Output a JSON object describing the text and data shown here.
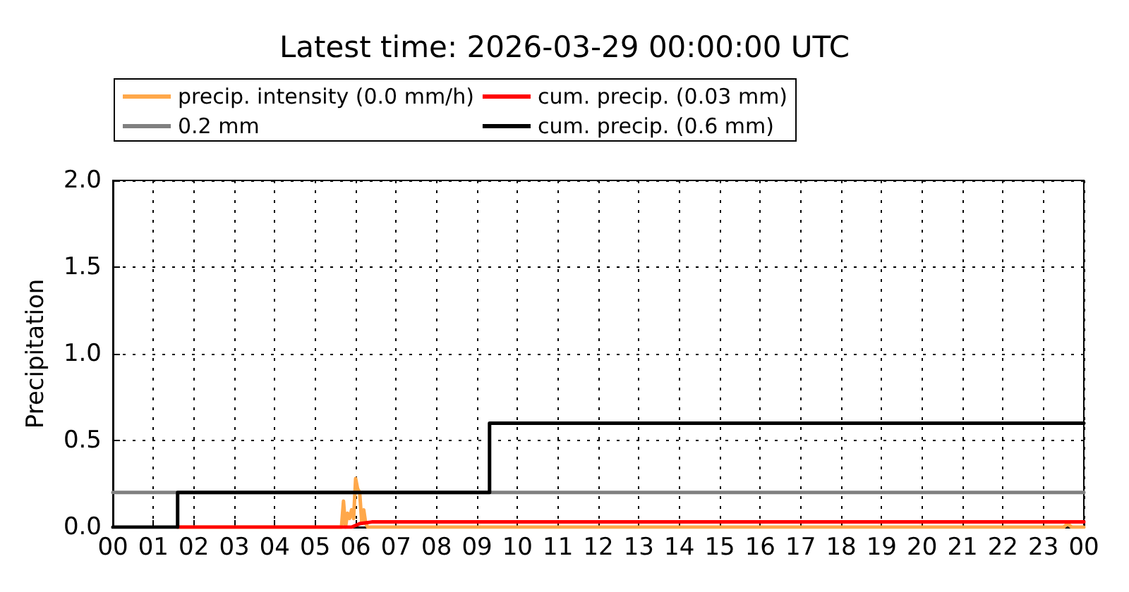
{
  "chart_data": {
    "type": "line",
    "title": "Latest time: 2026-03-29 00:00:00 UTC",
    "ylabel": "Precipitation",
    "xlim": [
      0,
      24
    ],
    "xticks": [
      {
        "value": 0,
        "label": "00"
      },
      {
        "value": 1,
        "label": "01"
      },
      {
        "value": 2,
        "label": "02"
      },
      {
        "value": 3,
        "label": "03"
      },
      {
        "value": 4,
        "label": "04"
      },
      {
        "value": 5,
        "label": "05"
      },
      {
        "value": 6,
        "label": "06"
      },
      {
        "value": 7,
        "label": "07"
      },
      {
        "value": 8,
        "label": "08"
      },
      {
        "value": 9,
        "label": "09"
      },
      {
        "value": 10,
        "label": "10"
      },
      {
        "value": 11,
        "label": "11"
      },
      {
        "value": 12,
        "label": "12"
      },
      {
        "value": 13,
        "label": "13"
      },
      {
        "value": 14,
        "label": "14"
      },
      {
        "value": 15,
        "label": "15"
      },
      {
        "value": 16,
        "label": "16"
      },
      {
        "value": 17,
        "label": "17"
      },
      {
        "value": 18,
        "label": "18"
      },
      {
        "value": 19,
        "label": "19"
      },
      {
        "value": 20,
        "label": "20"
      },
      {
        "value": 21,
        "label": "21"
      },
      {
        "value": 22,
        "label": "22"
      },
      {
        "value": 23,
        "label": "23"
      },
      {
        "value": 24,
        "label": "00"
      }
    ],
    "ylim": [
      0,
      2
    ],
    "yticks": [
      {
        "value": 0,
        "label": "0.0"
      },
      {
        "value": 0.5,
        "label": "0.5"
      },
      {
        "value": 1,
        "label": "1.0"
      },
      {
        "value": 1.5,
        "label": "1.5"
      },
      {
        "value": 2,
        "label": "2.0"
      }
    ],
    "grid": true,
    "legend": "top",
    "marker": "none",
    "line_style": "solid",
    "series": [
      {
        "name": "precip. intensity (0.0 mm/h)",
        "color": "#ffa84a",
        "x": [
          1.6,
          5.65,
          5.7,
          5.75,
          5.8,
          5.85,
          5.9,
          5.95,
          6.0,
          6.05,
          6.1,
          6.15,
          6.2,
          6.25,
          6.3,
          6.4,
          23.5,
          23.6,
          23.7,
          24
        ],
        "values": [
          0,
          0,
          0.15,
          0,
          0.08,
          0.05,
          0.1,
          0.05,
          0.28,
          0.22,
          0.2,
          0.03,
          0.1,
          0.02,
          0,
          0,
          0,
          0.02,
          0,
          0
        ]
      },
      {
        "name": "0.2 mm",
        "color": "#808080",
        "x": [
          0,
          24
        ],
        "values": [
          0.2,
          0.2
        ]
      },
      {
        "name": "cum. precip. (0.03 mm)",
        "color": "#ff0000",
        "x": [
          1.6,
          5.9,
          6.1,
          6.4,
          24
        ],
        "values": [
          0,
          0,
          0.02,
          0.03,
          0.03
        ]
      },
      {
        "name": "cum. precip. (0.6 mm)",
        "type": "step",
        "color": "#000000",
        "x": [
          0,
          1.6,
          9.31,
          24
        ],
        "values": [
          0,
          0.2,
          0.6,
          0.6
        ]
      }
    ]
  }
}
